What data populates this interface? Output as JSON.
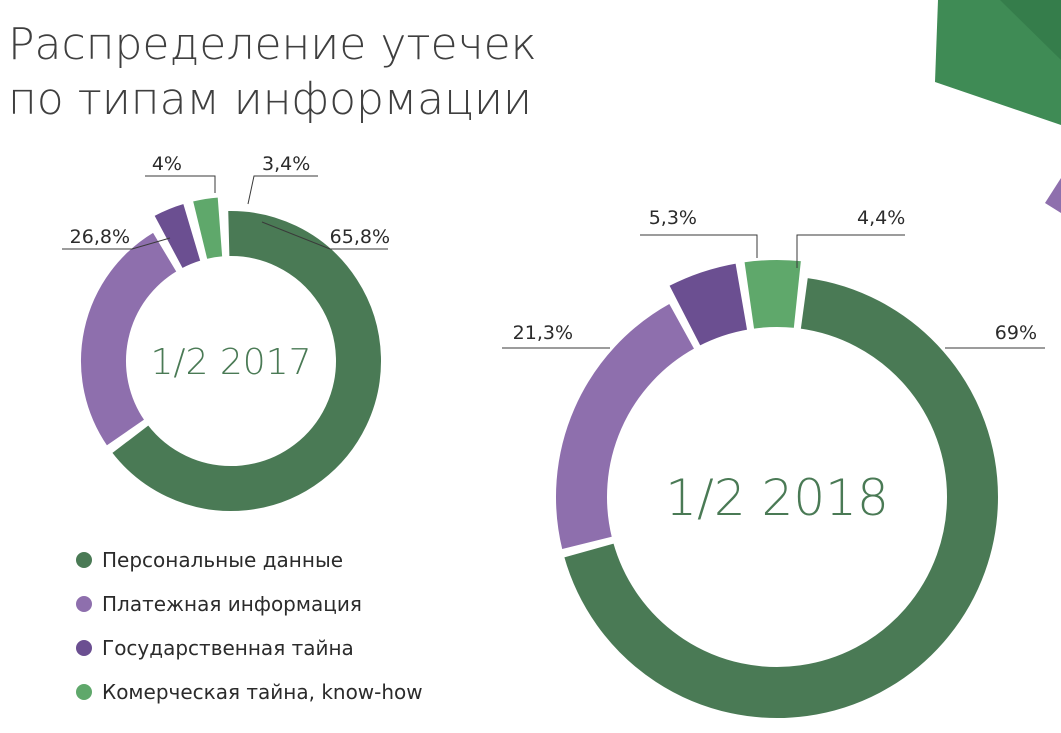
{
  "title": [
    "Распределение утечек",
    "по типам информации"
  ],
  "colors": {
    "personal": "#4a7a55",
    "payment": "#8e6fad",
    "state": "#6b4f91",
    "commercial": "#5fa86b",
    "center_text": "#4a7a55",
    "deco_green": "#3f8b55",
    "deco_purple": "#8e6fad"
  },
  "legend": [
    {
      "label": "Персональные данные",
      "color": "#4a7a55"
    },
    {
      "label": "Платежная информация",
      "color": "#8e6fad"
    },
    {
      "label": "Государственная тайна",
      "color": "#6b4f91"
    },
    {
      "label": "Комерческая тайна, know-how",
      "color": "#5fa86b"
    }
  ],
  "chart_data": [
    {
      "type": "pie",
      "center_label": "1/2 2017",
      "categories": [
        "Персональные данные",
        "Платежная информация",
        "Государственная тайна",
        "Комерческая тайна, know-how"
      ],
      "values": [
        65.8,
        26.8,
        4,
        3.4
      ],
      "value_labels": [
        "65,8%",
        "26,8%",
        "4%",
        "3,4%"
      ]
    },
    {
      "type": "pie",
      "center_label": "1/2 2018",
      "categories": [
        "Персональные данные",
        "Платежная информация",
        "Государственная тайна",
        "Комерческая тайна, know-how"
      ],
      "values": [
        69,
        21.3,
        5.3,
        4.4
      ],
      "value_labels": [
        "69%",
        "21,3%",
        "5,3%",
        "4,4%"
      ]
    }
  ]
}
